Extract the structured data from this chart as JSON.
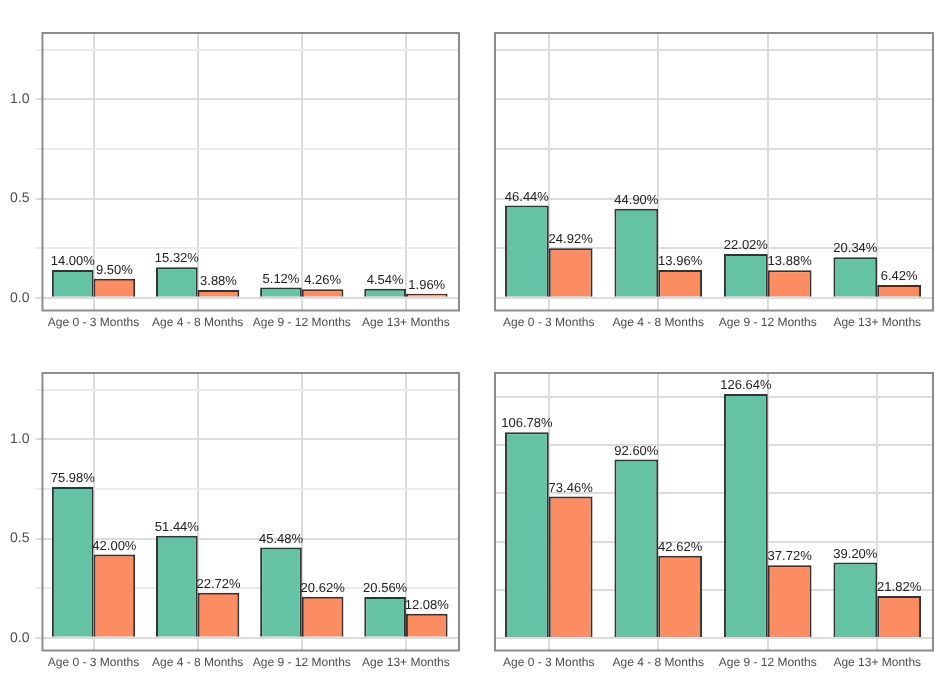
{
  "chart_data": [
    {
      "type": "bar",
      "categories": [
        "Age 0 - 3 Months",
        "Age 4 - 8 Months",
        "Age 9 - 12 Months",
        "Age 13+ Months"
      ],
      "series": [
        {
          "color": "#66c2a5",
          "values": [
            0.14,
            0.1532,
            0.0512,
            0.0454
          ],
          "value_labels": [
            "14.00%",
            "15.32%",
            "5.12%",
            "4.54%"
          ]
        },
        {
          "color": "#fc8d62",
          "values": [
            0.095,
            0.0388,
            0.0426,
            0.0196
          ],
          "value_labels": [
            "9.50%",
            "3.88%",
            "4.26%",
            "1.96%"
          ]
        }
      ],
      "ylim": [
        -0.06,
        1.34
      ],
      "yticks": [
        {
          "value": 0,
          "label": "0.0"
        },
        {
          "value": 0.25,
          "label": null
        },
        {
          "value": 0.5,
          "label": "0.5"
        },
        {
          "value": 0.75,
          "label": null
        },
        {
          "value": 1,
          "label": "1.0"
        },
        {
          "value": 1.25,
          "label": null
        }
      ],
      "grid": true
    },
    {
      "type": "bar",
      "categories": [
        "Age 0 - 3 Months",
        "Age 4 - 8 Months",
        "Age 9 - 12 Months",
        "Age 13+ Months"
      ],
      "series": [
        {
          "color": "#66c2a5",
          "values": [
            0.4644,
            0.449,
            0.2202,
            0.2034
          ],
          "value_labels": [
            "46.44%",
            "44.90%",
            "22.02%",
            "20.34%"
          ]
        },
        {
          "color": "#fc8d62",
          "values": [
            0.2492,
            0.1396,
            0.1388,
            0.0642
          ],
          "value_labels": [
            "24.92%",
            "13.96%",
            "13.88%",
            "6.42%"
          ]
        }
      ],
      "ylim": [
        -0.06,
        1.34
      ],
      "yticks": [
        {
          "value": 0,
          "label": null
        },
        {
          "value": 0.25,
          "label": null
        },
        {
          "value": 0.5,
          "label": null
        },
        {
          "value": 0.75,
          "label": null
        },
        {
          "value": 1,
          "label": null
        },
        {
          "value": 1.25,
          "label": null
        }
      ],
      "grid": true,
      "tick_labels": "x"
    },
    {
      "type": "bar",
      "categories": [
        "Age 0 - 3 Months",
        "Age 4 - 8 Months",
        "Age 9 - 12 Months",
        "Age 13+ Months"
      ],
      "series": [
        {
          "color": "#66c2a5",
          "values": [
            0.7598,
            0.5144,
            0.4548,
            0.2056
          ],
          "value_labels": [
            "75.98%",
            "51.44%",
            "45.48%",
            "20.56%"
          ]
        },
        {
          "color": "#fc8d62",
          "values": [
            0.42,
            0.2272,
            0.2062,
            0.1208
          ],
          "value_labels": [
            "42.00%",
            "22.72%",
            "20.62%",
            "12.08%"
          ]
        }
      ],
      "ylim": [
        -0.06,
        1.34
      ],
      "yticks": [
        {
          "value": 0,
          "label": "0.0"
        },
        {
          "value": 0.25,
          "label": null
        },
        {
          "value": 0.5,
          "label": "0.5"
        },
        {
          "value": 0.75,
          "label": null
        },
        {
          "value": 1,
          "label": "1.0"
        },
        {
          "value": 1.25,
          "label": null
        }
      ],
      "grid": true
    },
    {
      "type": "bar",
      "categories": [
        "Age 0 - 3 Months",
        "Age 4 - 8 Months",
        "Age 9 - 12 Months",
        "Age 13+ Months"
      ],
      "series": [
        {
          "color": "#66c2a5",
          "values": [
            1.0678,
            0.926,
            1.2664,
            0.392
          ],
          "value_labels": [
            "106.78%",
            "92.60%",
            "126.64%",
            "39.20%"
          ]
        },
        {
          "color": "#fc8d62",
          "values": [
            0.7346,
            0.4262,
            0.3772,
            0.2182
          ],
          "value_labels": [
            "73.46%",
            "42.62%",
            "37.72%",
            "21.82%"
          ]
        }
      ],
      "ylim": [
        -0.06,
        1.38
      ],
      "yticks": [
        {
          "value": 0,
          "label": null
        },
        {
          "value": 0.25,
          "label": null
        },
        {
          "value": 0.5,
          "label": null
        },
        {
          "value": 0.75,
          "label": null
        },
        {
          "value": 1,
          "label": null
        },
        {
          "value": 1.25,
          "label": null
        }
      ],
      "grid": true,
      "tick_labels": "x"
    }
  ]
}
